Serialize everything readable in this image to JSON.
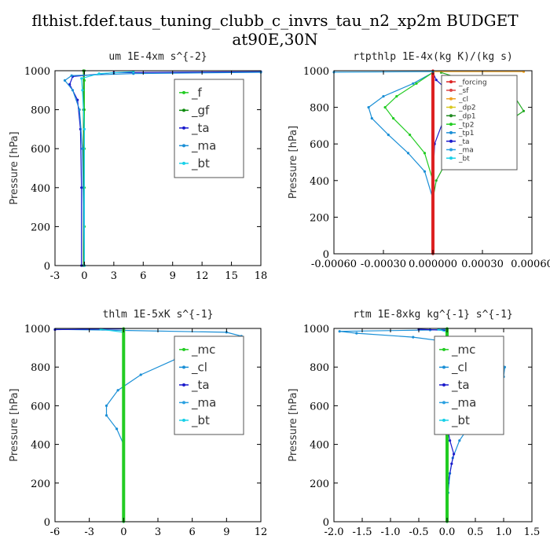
{
  "title": "flthist.fdef.taus_tuning_clubb_c_invrs_tau_n2_xp2m  BUDGET at90E,30N",
  "chart_data": [
    {
      "type": "line",
      "title": "um  1E-4xm s^{-2}",
      "ylabel": "Pressure [hPa]",
      "xlim": [
        -3,
        18
      ],
      "ylim": [
        1000,
        0
      ],
      "xticks": [
        -3,
        0,
        3,
        6,
        9,
        12,
        15,
        18
      ],
      "xticklabels": [
        "-3",
        "0",
        "3",
        "6",
        "9",
        "12",
        "15",
        "18"
      ],
      "yticks": [
        0,
        200,
        400,
        600,
        800,
        1000
      ],
      "yticklabels": [
        "0",
        "200",
        "400",
        "600",
        "800",
        "1000"
      ],
      "legend_font": 15,
      "legend": [
        {
          "label": "_f",
          "color": "#22cc22"
        },
        {
          "label": "_gf",
          "color": "#0c8a0c"
        },
        {
          "label": "_ta",
          "color": "#1a1acc"
        },
        {
          "label": "_ma",
          "color": "#1a8fd6"
        },
        {
          "label": "_bt",
          "color": "#18d0e8"
        }
      ],
      "series": [
        {
          "color": "#22cc22",
          "points": [
            [
              0,
              0
            ],
            [
              0,
              200
            ],
            [
              0,
              400
            ],
            [
              0,
              600
            ],
            [
              0,
              800
            ],
            [
              0,
              950
            ],
            [
              0,
              1000
            ]
          ]
        },
        {
          "color": "#0c8a0c",
          "points": [
            [
              -0.1,
              0
            ],
            [
              -0.1,
              400
            ],
            [
              -0.1,
              800
            ],
            [
              -0.1,
              1000
            ]
          ]
        },
        {
          "color": "#1a1acc",
          "points": [
            [
              -0.3,
              0
            ],
            [
              -0.3,
              400
            ],
            [
              -0.4,
              700
            ],
            [
              -0.7,
              850
            ],
            [
              -1.5,
              930
            ],
            [
              -1.2,
              970
            ],
            [
              3,
              990
            ],
            [
              18,
              995
            ]
          ]
        },
        {
          "color": "#1a8fd6",
          "points": [
            [
              0,
              0
            ],
            [
              -0.2,
              600
            ],
            [
              -0.5,
              800
            ],
            [
              -1.2,
              900
            ],
            [
              -2.0,
              950
            ],
            [
              -1.3,
              975
            ],
            [
              5,
              985
            ],
            [
              18,
              992
            ]
          ]
        },
        {
          "color": "#18d0e8",
          "points": [
            [
              0,
              0
            ],
            [
              0,
              700
            ],
            [
              -0.2,
              900
            ],
            [
              -0.3,
              960
            ],
            [
              1.5,
              985
            ],
            [
              5,
              995
            ]
          ]
        }
      ]
    },
    {
      "type": "line",
      "title": "rtpthlp  1E-4x(kg K)/(kg s)",
      "ylabel": "Pressure [hPa]",
      "xlim": [
        -0.0006,
        0.0006
      ],
      "ylim": [
        1000,
        0
      ],
      "xticks": [
        -0.0006,
        -0.0003,
        0,
        0.0003,
        0.0006
      ],
      "xticklabels": [
        "-0.00060",
        "-0.00030",
        "0.000000",
        "0.00030",
        "0.00060"
      ],
      "yticks": [
        0,
        200,
        400,
        600,
        800,
        1000
      ],
      "yticklabels": [
        "0",
        "200",
        "400",
        "600",
        "800",
        "1000"
      ],
      "legend_font": 9,
      "legend": [
        {
          "label": "_forcing",
          "color": "#dd2222"
        },
        {
          "label": "_sf",
          "color": "#dd4444"
        },
        {
          "label": "_cl",
          "color": "#f0a020"
        },
        {
          "label": "_dp2",
          "color": "#d8c820"
        },
        {
          "label": "_dp1",
          "color": "#208a20"
        },
        {
          "label": "_tp2",
          "color": "#22cc22"
        },
        {
          "label": "_tp1",
          "color": "#1a8fd6"
        },
        {
          "label": "_ta",
          "color": "#1a1acc"
        },
        {
          "label": "_ma",
          "color": "#2aa0e0"
        },
        {
          "label": "_bt",
          "color": "#18d0e8"
        }
      ],
      "series": [
        {
          "color": "#22aa22",
          "points": [
            [
              0,
              0
            ],
            [
              0,
              300
            ],
            [
              2e-05,
              400
            ],
            [
              8e-05,
              500
            ],
            [
              0.00022,
              600
            ],
            [
              0.00042,
              700
            ],
            [
              0.00055,
              780
            ],
            [
              0.0005,
              850
            ],
            [
              0.0003,
              920
            ],
            [
              5e-05,
              990
            ]
          ]
        },
        {
          "color": "#1a8fd6",
          "points": [
            [
              0,
              0
            ],
            [
              0,
              300
            ],
            [
              -5e-05,
              450
            ],
            [
              -0.00015,
              550
            ],
            [
              -0.00027,
              650
            ],
            [
              -0.00037,
              740
            ],
            [
              -0.00039,
              800
            ],
            [
              -0.0003,
              860
            ],
            [
              -0.00012,
              930
            ],
            [
              0,
              990
            ]
          ]
        },
        {
          "color": "#22cc22",
          "points": [
            [
              0,
              0
            ],
            [
              0,
              400
            ],
            [
              -5e-05,
              550
            ],
            [
              -0.00014,
              650
            ],
            [
              -0.00024,
              740
            ],
            [
              -0.00029,
              800
            ],
            [
              -0.00022,
              860
            ],
            [
              -0.0001,
              930
            ],
            [
              0,
              990
            ]
          ]
        },
        {
          "color": "#1a1acc",
          "points": [
            [
              0,
              0
            ],
            [
              0,
              400
            ],
            [
              1e-05,
              600
            ],
            [
              6e-05,
              720
            ],
            [
              0.00012,
              820
            ],
            [
              0.00014,
              860
            ],
            [
              8e-05,
              900
            ],
            [
              2e-05,
              950
            ],
            [
              0,
              990
            ]
          ]
        },
        {
          "color": "#dd2222",
          "points": [
            [
              0,
              0
            ],
            [
              0,
              1000
            ]
          ],
          "width": 4
        },
        {
          "color": "#f0a020",
          "points": [
            [
              0,
              995
            ],
            [
              0.00055,
              995
            ]
          ]
        },
        {
          "color": "#2aa0e0",
          "points": [
            [
              -0.0006,
              992
            ],
            [
              0,
              995
            ]
          ]
        }
      ]
    },
    {
      "type": "line",
      "title": "thlm  1E-5xK s^{-1}",
      "ylabel": "Pressure [hPa]",
      "xlim": [
        -6,
        12
      ],
      "ylim": [
        1000,
        0
      ],
      "xticks": [
        -6,
        -3,
        0,
        3,
        6,
        9,
        12
      ],
      "xticklabels": [
        "-6",
        "-3",
        "0",
        "3",
        "6",
        "9",
        "12"
      ],
      "yticks": [
        0,
        200,
        400,
        600,
        800,
        1000
      ],
      "yticklabels": [
        "0",
        "200",
        "400",
        "600",
        "800",
        "1000"
      ],
      "legend_font": 15,
      "legend": [
        {
          "label": "_mc",
          "color": "#22cc22"
        },
        {
          "label": "_cl",
          "color": "#1a8fd6"
        },
        {
          "label": "_ta",
          "color": "#1a1acc"
        },
        {
          "label": "_ma",
          "color": "#2aa0e0"
        },
        {
          "label": "_bt",
          "color": "#18d0e8"
        }
      ],
      "series": [
        {
          "color": "#1a8fd6",
          "points": [
            [
              0,
              0
            ],
            [
              0,
              200
            ],
            [
              0,
              400
            ],
            [
              -0.6,
              480
            ],
            [
              -1.5,
              550
            ],
            [
              -1.5,
              600
            ],
            [
              -0.5,
              680
            ],
            [
              1.5,
              760
            ],
            [
              4.5,
              840
            ],
            [
              8,
              920
            ],
            [
              10.3,
              960
            ],
            [
              9,
              980
            ],
            [
              0,
              990
            ],
            [
              -6,
              995
            ]
          ]
        },
        {
          "color": "#1a1acc",
          "points": [
            [
              -6,
              994
            ],
            [
              0,
              998
            ]
          ]
        },
        {
          "color": "#18d0e8",
          "points": [
            [
              0,
              0
            ],
            [
              0,
              980
            ],
            [
              -2,
              996
            ]
          ]
        },
        {
          "color": "#22cc22",
          "points": [
            [
              0,
              0
            ],
            [
              0,
              1000
            ]
          ],
          "width": 4
        }
      ]
    },
    {
      "type": "line",
      "title": "rtm  1E-8xkg kg^{-1} s^{-1}",
      "ylabel": "Pressure [hPa]",
      "xlim": [
        -2.0,
        1.5
      ],
      "ylim": [
        1000,
        0
      ],
      "xticks": [
        -2.0,
        -1.5,
        -1.0,
        -0.5,
        0.0,
        0.5,
        1.0,
        1.5
      ],
      "xticklabels": [
        "-2.0",
        "-1.5",
        "-1.0",
        "-0.5",
        "0.0",
        "0.5",
        "1.0",
        "1.5"
      ],
      "yticks": [
        0,
        200,
        400,
        600,
        800,
        1000
      ],
      "yticklabels": [
        "0",
        "200",
        "400",
        "600",
        "800",
        "1000"
      ],
      "legend_font": 15,
      "legend": [
        {
          "label": "_mc",
          "color": "#22cc22"
        },
        {
          "label": "_cl",
          "color": "#1a8fd6"
        },
        {
          "label": "_ta",
          "color": "#1a1acc"
        },
        {
          "label": "_ma",
          "color": "#2aa0e0"
        },
        {
          "label": "_bt",
          "color": "#18d0e8"
        }
      ],
      "series": [
        {
          "color": "#1a8fd6",
          "points": [
            [
              0,
              0
            ],
            [
              0.02,
              150
            ],
            [
              0.05,
              250
            ],
            [
              0.1,
              330
            ],
            [
              0.22,
              420
            ],
            [
              0.5,
              540
            ],
            [
              0.8,
              660
            ],
            [
              1.0,
              750
            ],
            [
              1.02,
              800
            ],
            [
              0.85,
              860
            ],
            [
              0.3,
              920
            ],
            [
              -0.6,
              955
            ],
            [
              -1.6,
              975
            ],
            [
              -1.9,
              985
            ],
            [
              -0.3,
              992
            ],
            [
              0,
              996
            ]
          ]
        },
        {
          "color": "#1a1acc",
          "points": [
            [
              0,
              0
            ],
            [
              0.02,
              200
            ],
            [
              0.08,
              300
            ],
            [
              0.12,
              350
            ],
            [
              0.05,
              420
            ],
            [
              0,
              500
            ],
            [
              0,
              990
            ],
            [
              -0.5,
              996
            ]
          ]
        },
        {
          "color": "#18d0e8",
          "points": [
            [
              0,
              0
            ],
            [
              0,
              980
            ],
            [
              -0.15,
              995
            ]
          ]
        },
        {
          "color": "#22cc22",
          "points": [
            [
              0,
              0
            ],
            [
              0,
              1000
            ]
          ],
          "width": 4
        }
      ]
    }
  ]
}
